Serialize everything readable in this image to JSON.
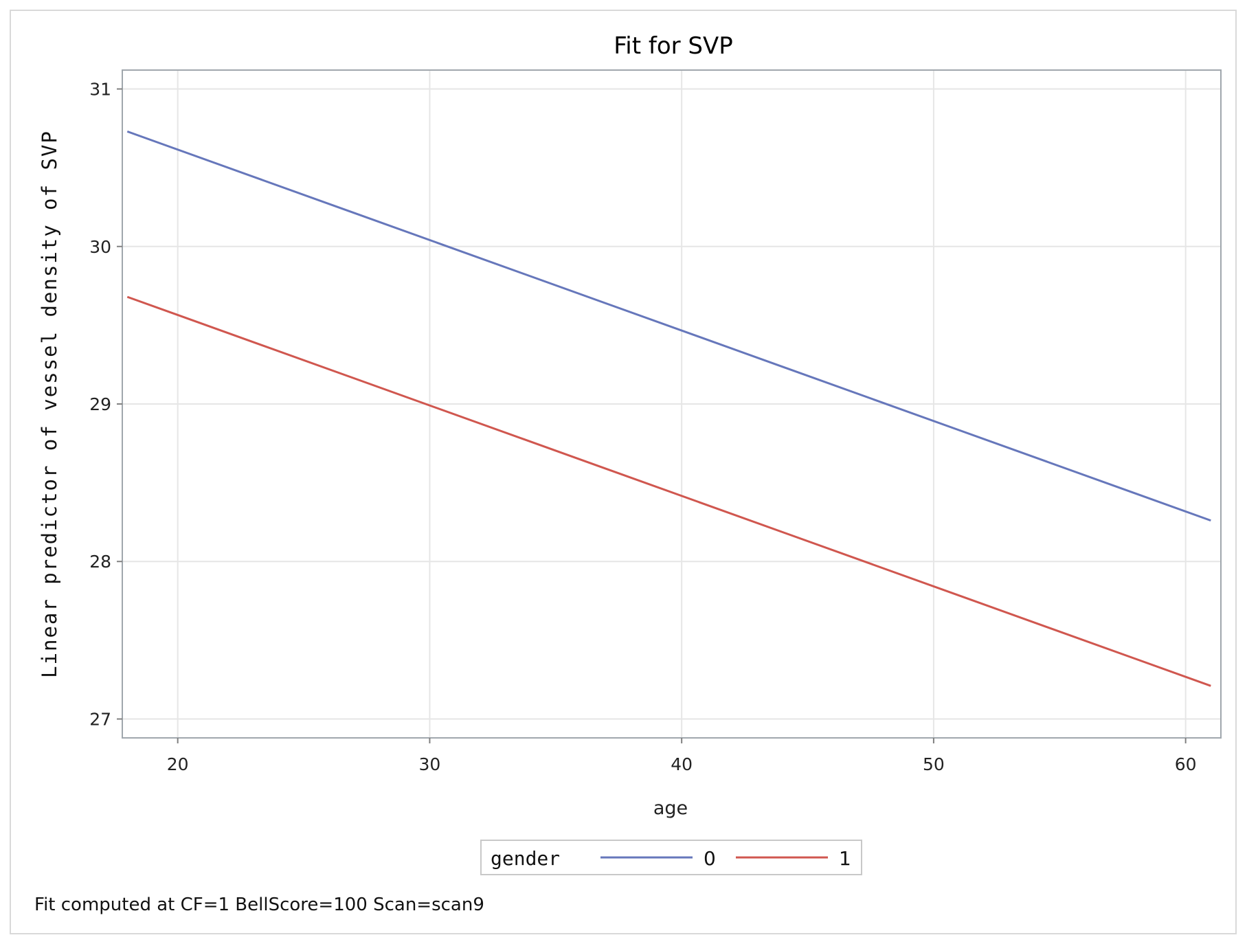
{
  "chart_data": {
    "type": "line",
    "title": "Fit for SVP",
    "xlabel": "age",
    "ylabel": "Linear predictor of vessel density of SVP",
    "xlim": [
      17.8,
      61.4
    ],
    "ylim": [
      26.88,
      31.12
    ],
    "xticks": [
      20,
      30,
      40,
      50,
      60
    ],
    "yticks": [
      27,
      28,
      29,
      30,
      31
    ],
    "grid": true,
    "legend": {
      "title": "gender",
      "placement": "bottom-center"
    },
    "series": [
      {
        "name": "0",
        "color": "#6677bb",
        "x": [
          18,
          61
        ],
        "y": [
          30.73,
          28.26
        ]
      },
      {
        "name": "1",
        "color": "#d0574f",
        "x": [
          18,
          61
        ],
        "y": [
          29.68,
          27.21
        ]
      }
    ],
    "footnote": "Fit computed at CF=1 BellScore=100 Scan=scan9"
  }
}
